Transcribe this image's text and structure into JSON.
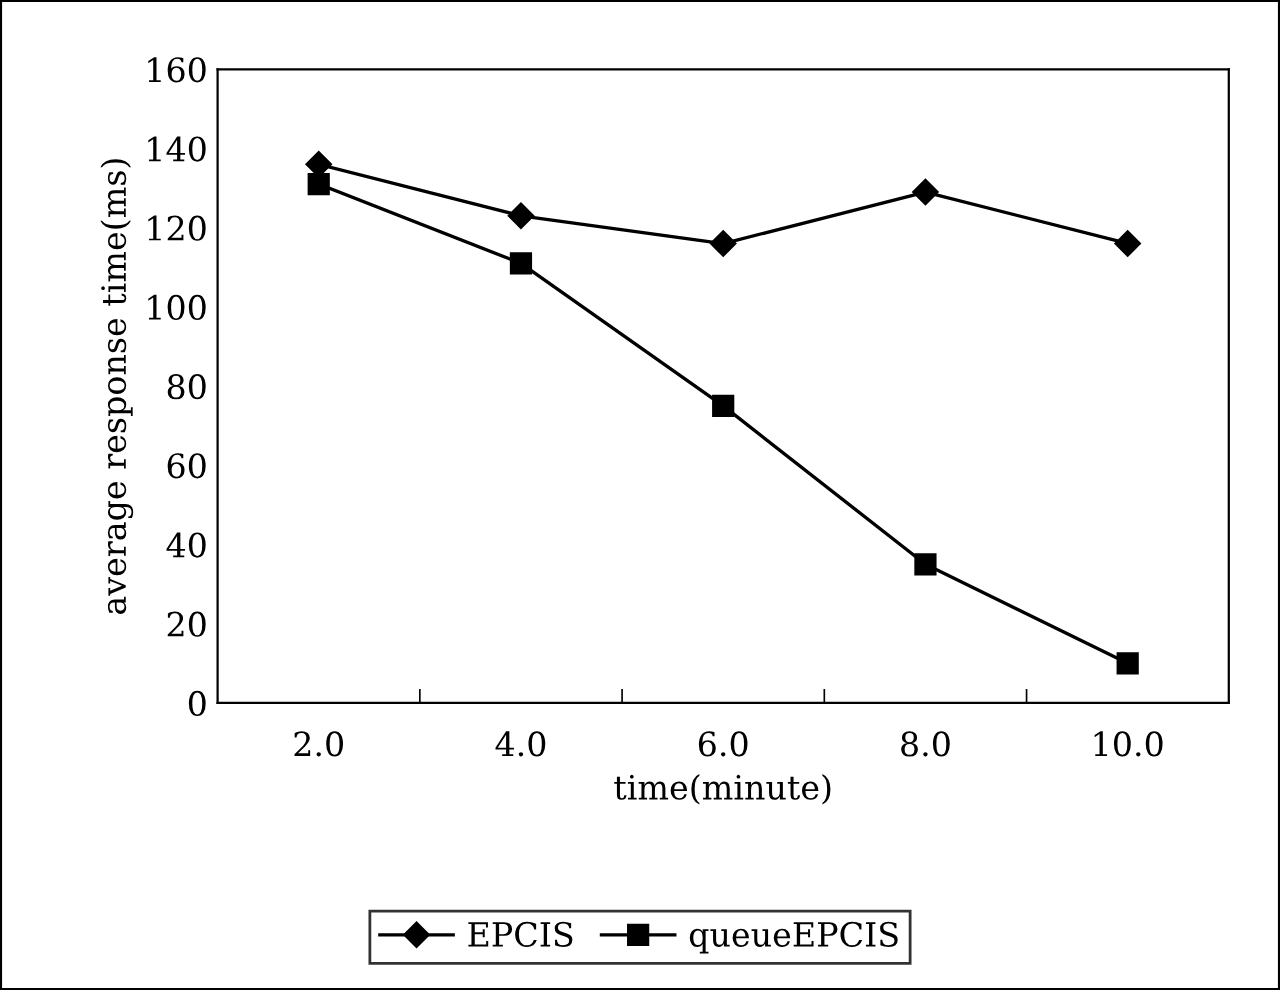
{
  "chart_data": {
    "type": "line",
    "xlabel": "time(minute)",
    "ylabel": "average response time(ms)",
    "categories": [
      "2.0",
      "4.0",
      "6.0",
      "8.0",
      "10.0"
    ],
    "series": [
      {
        "name": "EPCIS",
        "color": "#000000",
        "marker": "diamond",
        "values": [
          136,
          123,
          116,
          129,
          116
        ]
      },
      {
        "name": "queueEPCIS",
        "color": "#000000",
        "marker": "square",
        "values": [
          131,
          111,
          75,
          35,
          10
        ]
      }
    ],
    "ylim": [
      0,
      160
    ],
    "yticks": [
      0,
      20,
      40,
      60,
      80,
      100,
      120,
      140,
      160
    ],
    "grid": false,
    "legend": "bottom",
    "line_style": "solid"
  }
}
